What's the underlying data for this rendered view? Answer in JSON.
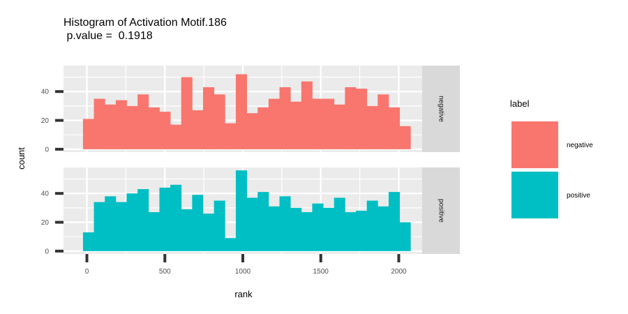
{
  "chart_data": {
    "type": "bar",
    "subtype": "faceted-histogram",
    "title": "Histogram of Activation Motif.186",
    "subtitle": " p.value =  0.1918",
    "xlabel": "rank",
    "ylabel": "count",
    "xlim": [
      -150,
      2150
    ],
    "ylim": [
      -2,
      58
    ],
    "x_ticks": [
      0,
      500,
      1000,
      1500,
      2000
    ],
    "y_ticks": [
      0,
      20,
      40
    ],
    "bin_edges": [
      -25,
      45,
      115,
      185,
      255,
      325,
      395,
      465,
      535,
      605,
      675,
      745,
      815,
      885,
      955,
      1025,
      1095,
      1165,
      1235,
      1305,
      1375,
      1445,
      1515,
      1585,
      1655,
      1725,
      1795,
      1865,
      1935,
      2005,
      2075
    ],
    "series": [
      {
        "name": "negative",
        "strip": "negative",
        "color": "#F8766D",
        "values": [
          21,
          35,
          31,
          34,
          30,
          38,
          29,
          26,
          17,
          50,
          27,
          43,
          38,
          18,
          52,
          25,
          29,
          35,
          43,
          33,
          47,
          35,
          35,
          31,
          43,
          42,
          30,
          38,
          29,
          16
        ]
      },
      {
        "name": "positive",
        "strip": "positive",
        "color": "#00BFC4",
        "values": [
          13,
          34,
          38,
          34,
          40,
          43,
          27,
          44,
          46,
          29,
          39,
          26,
          35,
          9,
          56,
          37,
          41,
          31,
          38,
          30,
          27,
          33,
          30,
          37,
          27,
          28,
          35,
          31,
          41,
          20
        ]
      }
    ],
    "legend": {
      "title": "label",
      "position": "right",
      "entries": [
        "negative",
        "positive"
      ]
    }
  }
}
